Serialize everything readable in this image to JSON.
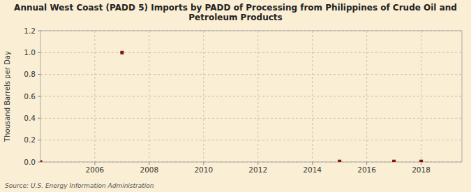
{
  "chart_data": {
    "type": "scatter",
    "title": "Annual West Coast (PADD 5) Imports by PADD of Processing from Philippines of Crude Oil and\nPetroleum Products",
    "y_label": "Thousand Barrels per Day",
    "source": "Source: U.S. Energy Information Administration",
    "x": [
      2004,
      2007,
      2015,
      2017,
      2018
    ],
    "values": [
      0.0,
      1.0,
      0.005,
      0.005,
      0.005
    ],
    "color": "#8b1010",
    "marker": "square",
    "xlim": [
      2004,
      2019.5
    ],
    "ylim": [
      0.0,
      1.2
    ],
    "xticks": [
      2006,
      2008,
      2010,
      2012,
      2014,
      2016,
      2018
    ],
    "yticks": [
      {
        "value": 0.0,
        "label": "0.0"
      },
      0.2,
      0.4,
      0.6,
      0.8,
      {
        "value": 1.0,
        "label": "1.0"
      },
      1.2
    ],
    "grid": true
  }
}
